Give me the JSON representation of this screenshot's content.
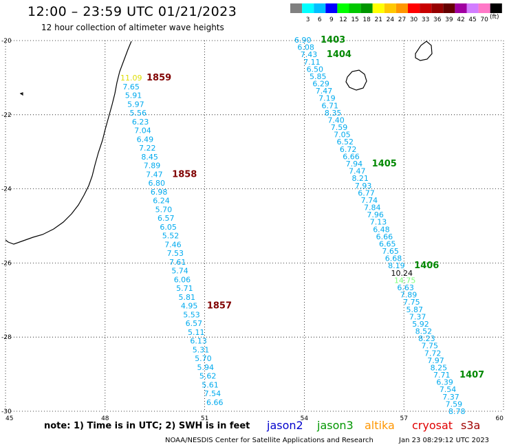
{
  "header": {
    "title": "12:00 – 23:59 UTC 01/21/2023",
    "subtitle": "12 hour collection of altimeter wave heights"
  },
  "color_scale": {
    "unit": "(ft)",
    "bins": [
      {
        "label": "",
        "color": "#808080"
      },
      {
        "label": "3",
        "color": "#00ffff"
      },
      {
        "label": "6",
        "color": "#00bfff"
      },
      {
        "label": "9",
        "color": "#0000ff"
      },
      {
        "label": "12",
        "color": "#00ff00"
      },
      {
        "label": "15",
        "color": "#00c800"
      },
      {
        "label": "18",
        "color": "#009600"
      },
      {
        "label": "21",
        "color": "#ffff00"
      },
      {
        "label": "24",
        "color": "#ffc800"
      },
      {
        "label": "27",
        "color": "#ff9600"
      },
      {
        "label": "30",
        "color": "#ff0000"
      },
      {
        "label": "33",
        "color": "#c80000"
      },
      {
        "label": "36",
        "color": "#960000"
      },
      {
        "label": "39",
        "color": "#640000"
      },
      {
        "label": "42",
        "color": "#a000a0"
      },
      {
        "label": "45",
        "color": "#d27dff"
      },
      {
        "label": "70",
        "color": "#ff78c8"
      },
      {
        "label": "",
        "color": "#000000"
      }
    ]
  },
  "map": {
    "lon_range": [
      45,
      60
    ],
    "lat_range": [
      -30,
      -20
    ],
    "lon_ticks": [
      "45",
      "48",
      "51",
      "54",
      "57",
      "60"
    ],
    "lat_ticks": [
      "-20",
      "-22",
      "-24",
      "-26",
      "-28",
      "-30"
    ]
  },
  "tracks": [
    {
      "color": "#00aaee",
      "values": [
        "11.09",
        "7.65",
        "5.91",
        "5.97",
        "5.56",
        "6.23",
        "7.04",
        "6.49",
        "7.22",
        "8.45",
        "7.89",
        "7.47",
        "6.80",
        "6.98",
        "6.24",
        "5.70",
        "6.57",
        "6.05",
        "5.52",
        "7.46",
        "7.53",
        "7.61",
        "5.74",
        "6.06",
        "5.71",
        "5.81",
        "4.95",
        "5.53",
        "6.57",
        "5.11",
        "6.13",
        "5.31",
        "5.70",
        "5.94",
        "5.62",
        "5.61",
        "7.54",
        "6.66"
      ],
      "value_colors": {
        "0": "#dddd00"
      },
      "times": [
        {
          "after": 0,
          "label": "1859",
          "color": "#800000"
        },
        {
          "after": 11,
          "label": "1858",
          "color": "#800000"
        },
        {
          "after": 26,
          "label": "1857",
          "color": "#800000"
        }
      ]
    },
    {
      "color": "#00aaee",
      "values": [
        "6.90",
        "6.08",
        "7.43",
        "7.11",
        "6.50",
        "5.85",
        "6.29",
        "7.47",
        "7.19",
        "6.71",
        "8.35",
        "7.40",
        "7.59",
        "7.05",
        "6.52",
        "6.72",
        "6.66",
        "7.94",
        "7.47",
        "8.21",
        "7.93",
        "6.77",
        "7.74",
        "7.84",
        "7.96",
        "7.13",
        "6.48",
        "6.66",
        "6.65",
        "7.65",
        "6.68",
        "8.19",
        "10.24",
        "14.75",
        "6.63",
        "7.89",
        "7.75",
        "5.87",
        "7.37",
        "5.92",
        "8.52",
        "8.23",
        "7.75",
        "7.72",
        "7.97",
        "8.25",
        "7.71",
        "6.39",
        "7.54",
        "7.37",
        "7.59",
        "8.78"
      ],
      "value_colors": {
        "32": "#000000",
        "33": "#7cff7c"
      },
      "times": [
        {
          "after": 0,
          "label": "1403",
          "color": "#008800"
        },
        {
          "after": 2,
          "label": "1404",
          "color": "#008800"
        },
        {
          "after": 17,
          "label": "1405",
          "color": "#008800"
        },
        {
          "after": 31,
          "label": "1406",
          "color": "#008800"
        },
        {
          "after": 46,
          "label": "1407",
          "color": "#008800"
        }
      ]
    }
  ],
  "footer": {
    "note": "note:  1) Time is in UTC;  2) SWH is in feet",
    "satellites": [
      {
        "name": "jason2",
        "color": "#0000cc"
      },
      {
        "name": "jason3",
        "color": "#009600"
      },
      {
        "name": "altika",
        "color": "#ff9600"
      },
      {
        "name": "cryosat",
        "color": "#e00000"
      },
      {
        "name": "s3a",
        "color": "#a00000"
      }
    ],
    "credit": "NOAA/NESDIS Center for Satellite Applications and Research",
    "timestamp": "Jan 23 08:29:12 UTC 2023"
  }
}
